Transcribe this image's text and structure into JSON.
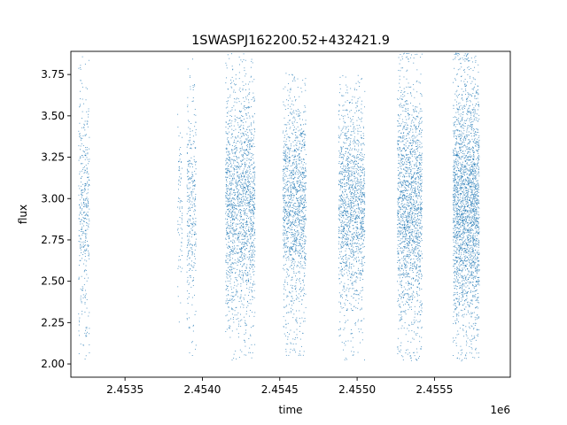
{
  "chart_data": {
    "type": "scatter",
    "title": "1SWASPJ162200.52+432421.9",
    "xlabel": "time",
    "ylabel": "flux",
    "x_offset_label": "1e6",
    "xlim": [
      2453150,
      2455990
    ],
    "ylim": [
      1.92,
      3.89
    ],
    "x_ticks": [
      2453500,
      2454000,
      2454500,
      2455000,
      2455500
    ],
    "x_tick_labels": [
      "2.4535",
      "2.4540",
      "2.4545",
      "2.4550",
      "2.4555"
    ],
    "y_ticks": [
      2.0,
      2.25,
      2.5,
      2.75,
      3.0,
      3.25,
      3.5,
      3.75
    ],
    "y_tick_labels": [
      "2.00",
      "2.25",
      "2.50",
      "2.75",
      "3.00",
      "3.25",
      "3.50",
      "3.75"
    ],
    "grid": false,
    "marker_color": "#1f77b4",
    "series": [
      {
        "observing_seasons": [
          {
            "x_range": [
              2453200,
              2453270
            ],
            "flux_center": 2.95,
            "flux_range": [
              2.0,
              3.88
            ],
            "points": 380
          },
          {
            "x_range": [
              2453840,
              2453870
            ],
            "flux_center": 2.95,
            "flux_range": [
              2.15,
              3.55
            ],
            "points": 80
          },
          {
            "x_range": [
              2453900,
              2453960
            ],
            "flux_center": 2.95,
            "flux_range": [
              2.05,
              3.85
            ],
            "points": 320
          },
          {
            "x_range": [
              2454150,
              2454340
            ],
            "flux_center": 2.95,
            "flux_range": [
              2.02,
              3.88
            ],
            "points": 1700
          },
          {
            "x_range": [
              2454520,
              2454670
            ],
            "flux_center": 2.95,
            "flux_range": [
              2.05,
              3.76
            ],
            "points": 1300
          },
          {
            "x_range": [
              2454880,
              2455050
            ],
            "flux_center": 2.95,
            "flux_range": [
              2.02,
              3.75
            ],
            "points": 1400
          },
          {
            "x_range": [
              2455260,
              2455420
            ],
            "flux_center": 2.95,
            "flux_range": [
              2.02,
              3.88
            ],
            "points": 1700
          },
          {
            "x_range": [
              2455620,
              2455790
            ],
            "flux_center": 2.95,
            "flux_range": [
              2.01,
              3.88
            ],
            "points": 2400
          }
        ]
      }
    ]
  }
}
